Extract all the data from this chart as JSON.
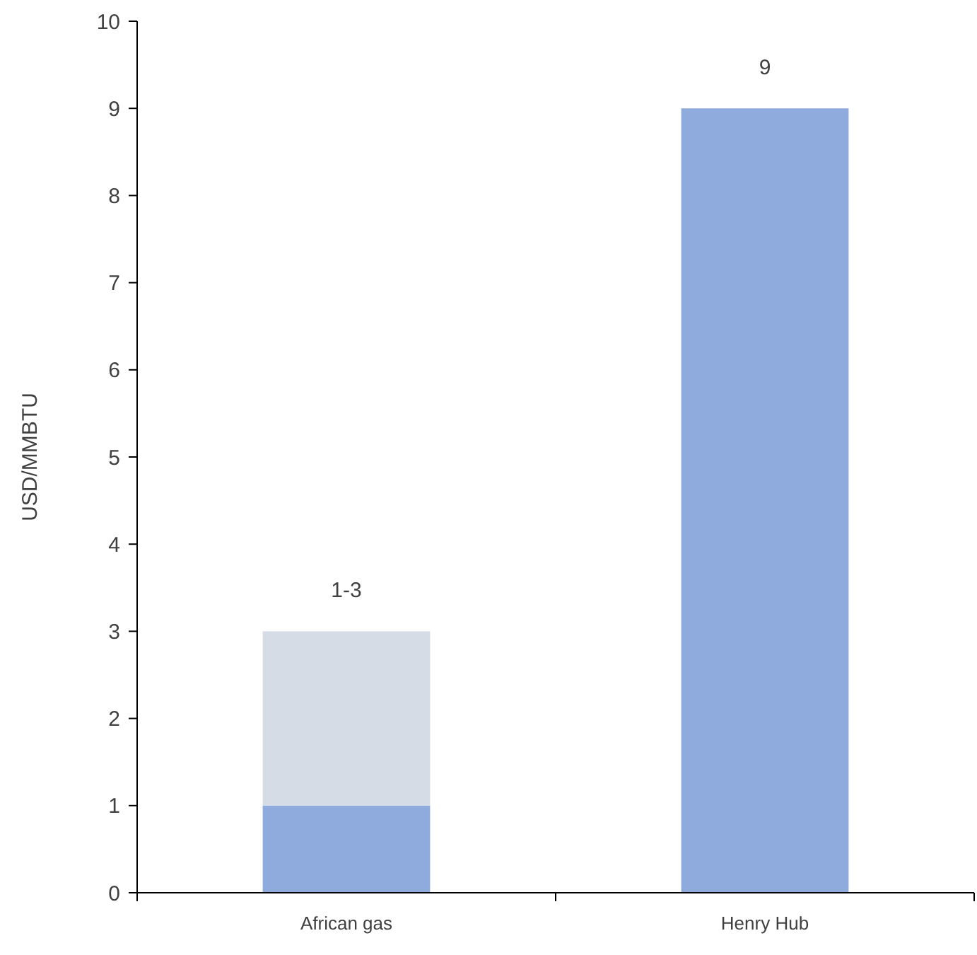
{
  "chart_data": {
    "type": "bar",
    "stacked": true,
    "ylabel": "USD/MMBTU",
    "categories": [
      "African gas",
      "Henry Hub"
    ],
    "series": [
      {
        "color": "#8faadc",
        "values": [
          1,
          9
        ]
      },
      {
        "color": "#d6dce5",
        "values": [
          2,
          null
        ]
      }
    ],
    "totals": [
      "1-3",
      "9"
    ],
    "ylim": [
      0,
      10
    ],
    "yticks": [
      0,
      1,
      2,
      3,
      4,
      5,
      6,
      7,
      8,
      9,
      10
    ],
    "grid": false
  }
}
